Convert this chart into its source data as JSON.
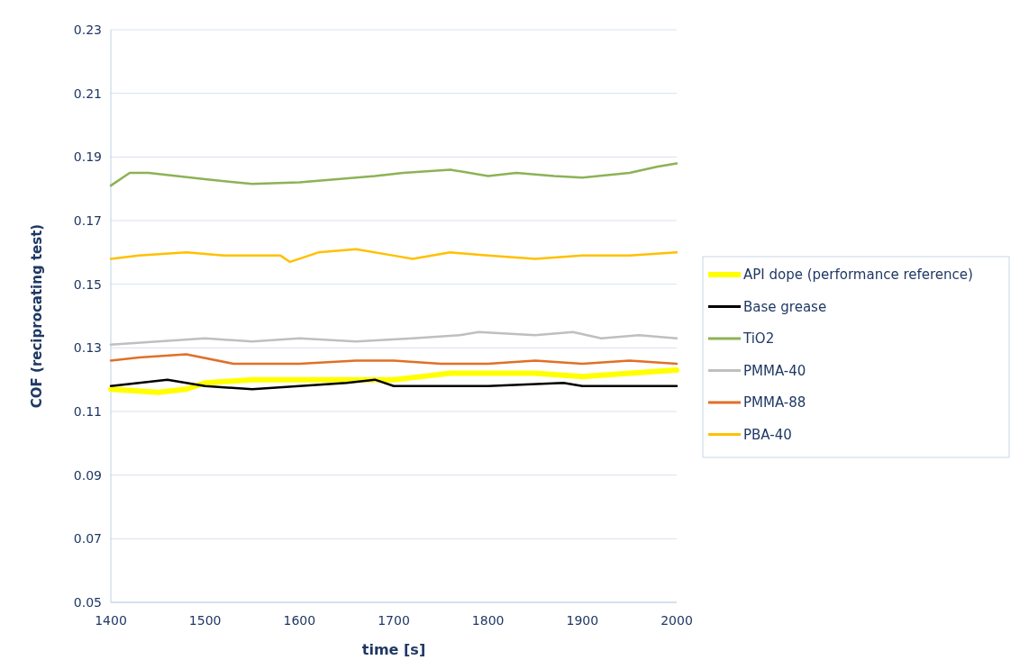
{
  "chart_data": {
    "type": "line",
    "xlabel": "time [s]",
    "ylabel": "COF (reciprocating test)",
    "xlim": [
      1400,
      2000
    ],
    "xticks": [
      1400,
      1500,
      1600,
      1700,
      1800,
      1900,
      2000
    ],
    "ylim": [
      0.05,
      0.23
    ],
    "yticks": [
      0.05,
      0.07,
      0.09,
      0.11,
      0.13,
      0.15,
      0.17,
      0.19,
      0.21,
      0.23
    ],
    "grid": "y",
    "legend": "right",
    "line_style": "solid",
    "marker": "none",
    "series": [
      {
        "name": "API dope (performance reference)",
        "color": "#ffff00",
        "x": [
          1400,
          1450,
          1480,
          1500,
          1550,
          1620,
          1700,
          1730,
          1760,
          1800,
          1850,
          1900,
          1950,
          2000
        ],
        "values": [
          0.117,
          0.116,
          0.117,
          0.119,
          0.12,
          0.12,
          0.12,
          0.121,
          0.122,
          0.122,
          0.122,
          0.121,
          0.122,
          0.123
        ]
      },
      {
        "name": "Base grease",
        "color": "#000000",
        "x": [
          1400,
          1430,
          1460,
          1500,
          1550,
          1600,
          1650,
          1680,
          1700,
          1750,
          1800,
          1880,
          1900,
          2000
        ],
        "values": [
          0.118,
          0.119,
          0.12,
          0.118,
          0.117,
          0.118,
          0.119,
          0.12,
          0.118,
          0.118,
          0.118,
          0.119,
          0.118,
          0.118
        ]
      },
      {
        "name": "TiO2",
        "color": "#8db255",
        "x": [
          1400,
          1420,
          1440,
          1500,
          1550,
          1600,
          1620,
          1680,
          1710,
          1760,
          1800,
          1830,
          1870,
          1900,
          1950,
          1980,
          2000
        ],
        "values": [
          0.181,
          0.185,
          0.185,
          0.183,
          0.1815,
          0.182,
          0.1825,
          0.184,
          0.185,
          0.186,
          0.184,
          0.185,
          0.184,
          0.1835,
          0.185,
          0.187,
          0.188
        ]
      },
      {
        "name": "PMMA-40",
        "color": "#bfbfbf",
        "x": [
          1400,
          1450,
          1500,
          1550,
          1600,
          1660,
          1720,
          1770,
          1790,
          1850,
          1890,
          1920,
          1960,
          2000
        ],
        "values": [
          0.131,
          0.132,
          0.133,
          0.132,
          0.133,
          0.132,
          0.133,
          0.134,
          0.135,
          0.134,
          0.135,
          0.133,
          0.134,
          0.133
        ]
      },
      {
        "name": "PMMA-88",
        "color": "#e07028",
        "x": [
          1400,
          1430,
          1480,
          1530,
          1600,
          1660,
          1700,
          1750,
          1800,
          1850,
          1900,
          1950,
          2000
        ],
        "values": [
          0.126,
          0.127,
          0.128,
          0.125,
          0.125,
          0.126,
          0.126,
          0.125,
          0.125,
          0.126,
          0.125,
          0.126,
          0.125
        ]
      },
      {
        "name": "PBA-40",
        "color": "#ffc000",
        "x": [
          1400,
          1430,
          1480,
          1520,
          1580,
          1590,
          1620,
          1660,
          1700,
          1720,
          1760,
          1800,
          1850,
          1900,
          1950,
          2000
        ],
        "values": [
          0.158,
          0.159,
          0.16,
          0.159,
          0.159,
          0.157,
          0.16,
          0.161,
          0.159,
          0.158,
          0.16,
          0.159,
          0.158,
          0.159,
          0.159,
          0.16
        ]
      }
    ]
  }
}
